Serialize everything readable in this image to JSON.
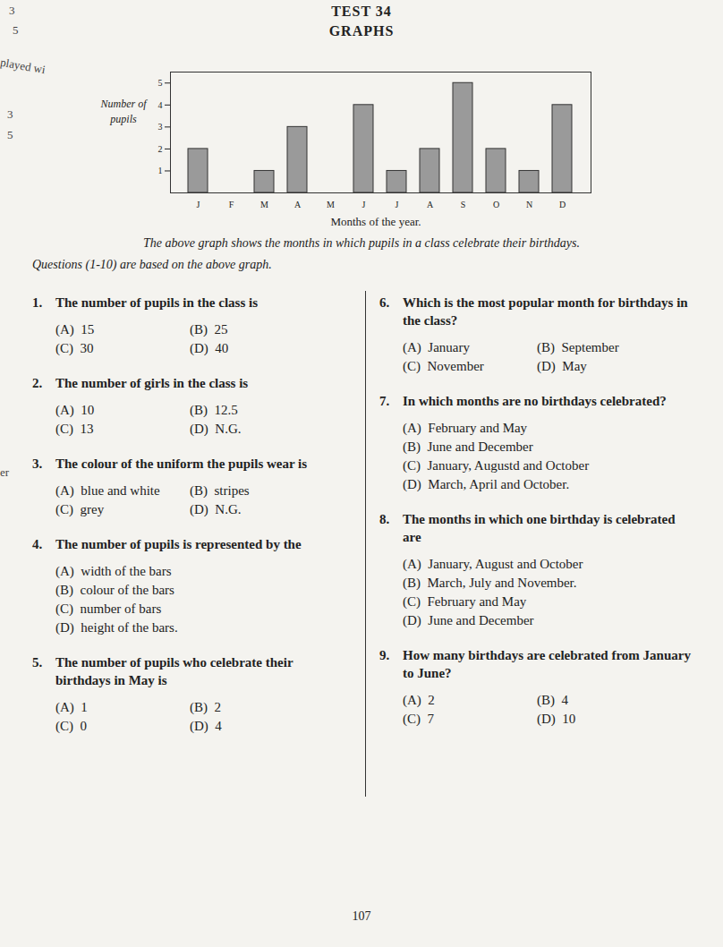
{
  "margin_fragments": [
    "3",
    "5",
    "played wi",
    "3",
    "5",
    "er"
  ],
  "header": {
    "title": "TEST 34",
    "subtitle": "GRAPHS"
  },
  "chart_data": {
    "type": "bar",
    "categories": [
      "J",
      "F",
      "M",
      "A",
      "M",
      "J",
      "J",
      "A",
      "S",
      "O",
      "N",
      "D"
    ],
    "values": [
      2,
      0,
      1,
      3,
      0,
      4,
      1,
      2,
      5,
      2,
      1,
      4
    ],
    "color": "#9a9a9a",
    "ylim": [
      0,
      5.5
    ],
    "yticks": [
      1,
      2,
      3,
      4,
      5
    ],
    "ylabel": "Number of pupils",
    "xlabel": "Months of the year.",
    "caption": "The above graph shows the months in which pupils in a class celebrate their birthdays."
  },
  "instructions": "Questions (1-10) are based on the above graph.",
  "questions": [
    {
      "number": "1.",
      "text": "The number of pupils in the class is",
      "options": [
        [
          "(A)",
          "15"
        ],
        [
          "(B)",
          "25"
        ],
        [
          "(C)",
          "30"
        ],
        [
          "(D)",
          "40"
        ]
      ]
    },
    {
      "number": "2.",
      "text": "The number of girls in the class is",
      "options": [
        [
          "(A)",
          "10"
        ],
        [
          "(B)",
          "12.5"
        ],
        [
          "(C)",
          "13"
        ],
        [
          "(D)",
          "N.G."
        ]
      ]
    },
    {
      "number": "3.",
      "text": "The colour of the uniform the pupils wear is",
      "options": [
        [
          "(A)",
          "blue and white"
        ],
        [
          "(B)",
          "stripes"
        ],
        [
          "(C)",
          "grey"
        ],
        [
          "(D)",
          "N.G."
        ]
      ]
    },
    {
      "number": "4.",
      "text": "The number of pupils is represented by the",
      "options": [
        [
          "(A)",
          "width of the bars"
        ],
        [
          "(B)",
          "colour of the bars"
        ],
        [
          "(C)",
          "number of bars"
        ],
        [
          "(D)",
          "height of the bars."
        ]
      ]
    },
    {
      "number": "5.",
      "text": "The number of pupils who celebrate their birthdays in May is",
      "options": [
        [
          "(A)",
          "1"
        ],
        [
          "(B)",
          "2"
        ],
        [
          "(C)",
          "0"
        ],
        [
          "(D)",
          "4"
        ]
      ]
    },
    {
      "number": "6.",
      "text": "Which is the most popular month for birthdays in the class?",
      "options": [
        [
          "(A)",
          "January"
        ],
        [
          "(B)",
          "September"
        ],
        [
          "(C)",
          "November"
        ],
        [
          "(D)",
          "May"
        ]
      ]
    },
    {
      "number": "7.",
      "text": "In which months are no birthdays celebrated?",
      "options": [
        [
          "(A)",
          "February and May"
        ],
        [
          "(B)",
          "June and December"
        ],
        [
          "(C)",
          "January, Augustd and October"
        ],
        [
          "(D)",
          "March, April and October."
        ]
      ]
    },
    {
      "number": "8.",
      "text": "The months in which one birthday is celebrated are",
      "options": [
        [
          "(A)",
          "January, August and October"
        ],
        [
          "(B)",
          "March, July and November."
        ],
        [
          "(C)",
          "February and May"
        ],
        [
          "(D)",
          "June and December"
        ]
      ]
    },
    {
      "number": "9.",
      "text": "How many birthdays are celebrated from January to June?",
      "options": [
        [
          "(A)",
          "2"
        ],
        [
          "(B)",
          "4"
        ],
        [
          "(C)",
          "7"
        ],
        [
          "(D)",
          "10"
        ]
      ]
    }
  ],
  "page_number": "107"
}
